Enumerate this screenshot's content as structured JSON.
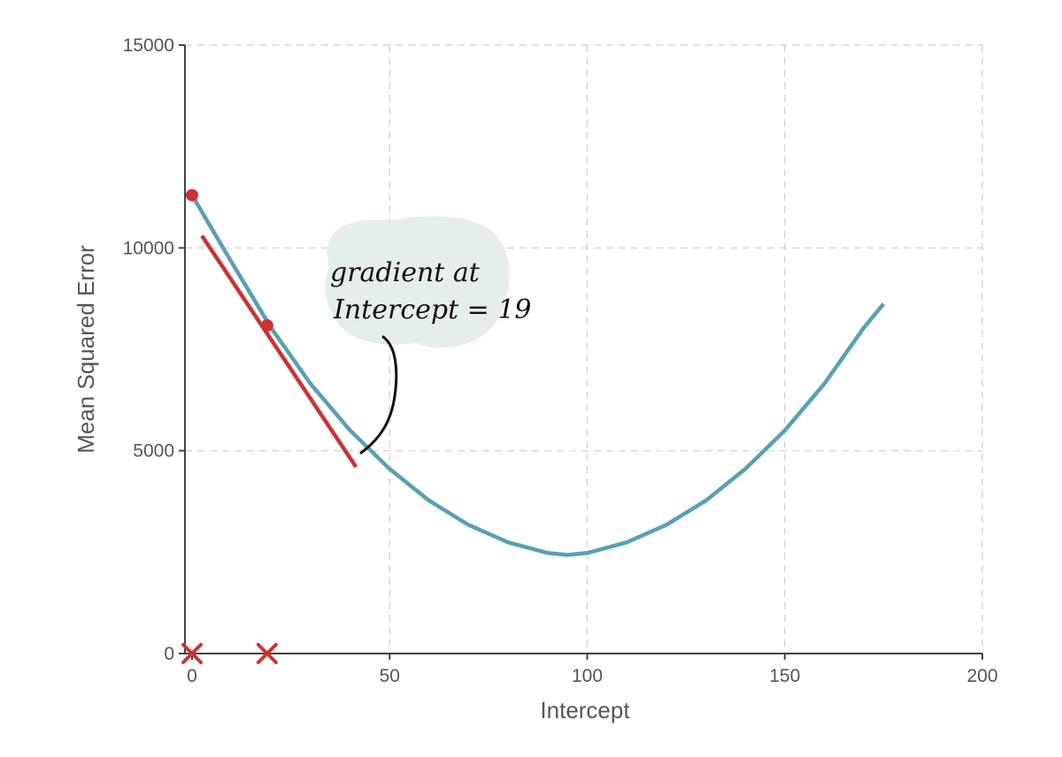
{
  "chart_data": {
    "type": "line",
    "xlabel": "Intercept",
    "ylabel": "Mean Squared Error",
    "xlim": [
      0,
      200
    ],
    "ylim": [
      0,
      15000
    ],
    "x_ticks": [
      0,
      50,
      100,
      150,
      200
    ],
    "y_ticks": [
      0,
      5000,
      10000,
      15000
    ],
    "x_tick_labels": [
      "0",
      "50",
      "100",
      "150",
      "200"
    ],
    "y_tick_labels": [
      "0",
      "5000",
      "10000",
      "15000"
    ],
    "grid": true,
    "series": [
      {
        "color": "#5a9fb5",
        "x": [
          0,
          10,
          20,
          30,
          40,
          50,
          60,
          70,
          80,
          90,
          95,
          100,
          110,
          120,
          130,
          140,
          150,
          160,
          170,
          175
        ],
        "y": [
          11300,
          9650,
          8030,
          6650,
          5500,
          4550,
          3770,
          3170,
          2740,
          2480,
          2430,
          2480,
          2740,
          3170,
          3770,
          4550,
          5500,
          6650,
          8030,
          8620
        ]
      }
    ],
    "points": [
      {
        "x": 0,
        "y": 11300,
        "color": "#cc3333"
      },
      {
        "x": 19,
        "y": 8090,
        "color": "#cc3333"
      }
    ],
    "x_markers": [
      {
        "x": 0,
        "color": "#cc3333"
      },
      {
        "x": 19,
        "color": "#cc3333"
      }
    ],
    "tangent": {
      "color": "#cc3333",
      "x": [
        2.5,
        41.5
      ],
      "y": [
        10300,
        4600
      ]
    },
    "annotation": {
      "lines": [
        "gradient at",
        "Intercept = 19"
      ],
      "bubble_color": "#e6eeea",
      "pointer_target": {
        "x": 43,
        "y": 5000
      }
    }
  }
}
